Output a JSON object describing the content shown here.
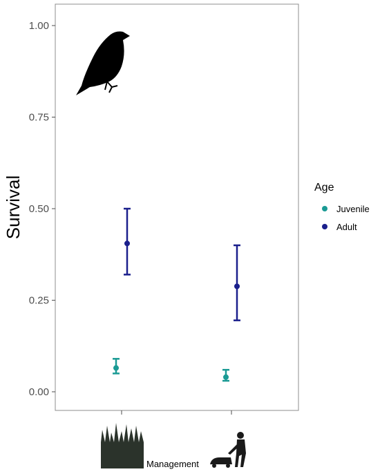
{
  "chart_data": {
    "type": "scatter",
    "ylabel": "Survival",
    "xlabel": "Management",
    "categories": [
      "unmown-grass-icon",
      "mowing-icon"
    ],
    "ylim": [
      0,
      1.0
    ],
    "yticks": [
      0.0,
      0.25,
      0.5,
      0.75,
      1.0
    ],
    "ytick_labels": [
      "0.00",
      "0.25",
      "0.50",
      "0.75",
      "1.00"
    ],
    "grid": false,
    "legend": {
      "title": "Age",
      "position": "right"
    },
    "series": [
      {
        "name": "Juvenile",
        "color": "#1a9a94",
        "values": [
          0.065,
          0.04
        ],
        "lower": [
          0.05,
          0.03
        ],
        "upper": [
          0.09,
          0.06
        ]
      },
      {
        "name": "Adult",
        "color": "#1a1f8c",
        "values": [
          0.405,
          0.288
        ],
        "lower": [
          0.32,
          0.195
        ],
        "upper": [
          0.5,
          0.4
        ]
      }
    ],
    "icons": [
      "bird-silhouette-icon"
    ]
  }
}
